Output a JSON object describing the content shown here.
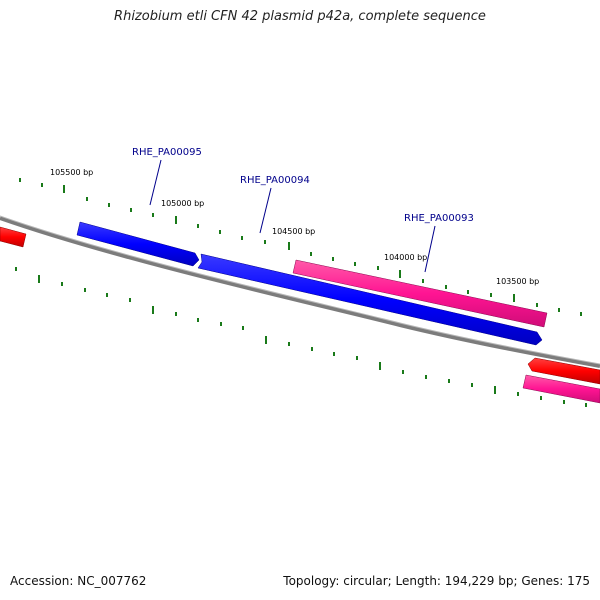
{
  "title": "Rhizobium etli CFN 42 plasmid p42a, complete sequence",
  "footer": {
    "accession": "Accession: NC_007762",
    "summary": "Topology: circular; Length: 194,229 bp; Genes: 175"
  },
  "colors": {
    "backbone": "#808080",
    "tick": "#1a7a1a",
    "gene_forward": "#0000ff",
    "gene_reverse": "#ff1493",
    "gene_other": "#ff0000",
    "label": "#00008b"
  },
  "scale_labels": [
    "105500 bp",
    "105000 bp",
    "104500 bp",
    "104000 bp",
    "103500 bp"
  ],
  "genes": [
    {
      "label": "RHE_PA00095",
      "color_key": "gene_forward",
      "strand": "reverse"
    },
    {
      "label": "RHE_PA00094",
      "color_key": "gene_forward",
      "strand": "reverse"
    },
    {
      "label": "RHE_PA00093",
      "color_key": "gene_reverse",
      "strand": "forward"
    },
    {
      "label": "",
      "color_key": "gene_other",
      "strand": "reverse"
    },
    {
      "label": "",
      "color_key": "gene_other",
      "strand": "reverse"
    },
    {
      "label": "",
      "color_key": "gene_reverse",
      "strand": "forward"
    }
  ]
}
